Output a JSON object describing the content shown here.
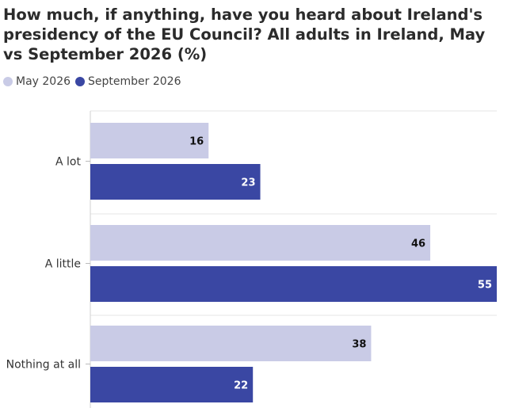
{
  "chart_data": {
    "type": "bar",
    "orientation": "horizontal",
    "title": "How much, if anything, have you heard about Ireland's presidency of the EU Council? All adults in Ireland, May vs September 2026 (%)",
    "categories": [
      "A lot",
      "A little",
      "Nothing at all"
    ],
    "series": [
      {
        "name": "May 2026",
        "color": "#c9cbe6",
        "values": [
          16,
          46,
          38
        ]
      },
      {
        "name": "September 2026",
        "color": "#3a47a3",
        "values": [
          23,
          55,
          22
        ]
      }
    ],
    "xlim": [
      0,
      55
    ],
    "grid": true,
    "legend": "top-left",
    "value_label_colors": {
      "May 2026": "#111111",
      "September 2026": "#ffffff"
    }
  }
}
